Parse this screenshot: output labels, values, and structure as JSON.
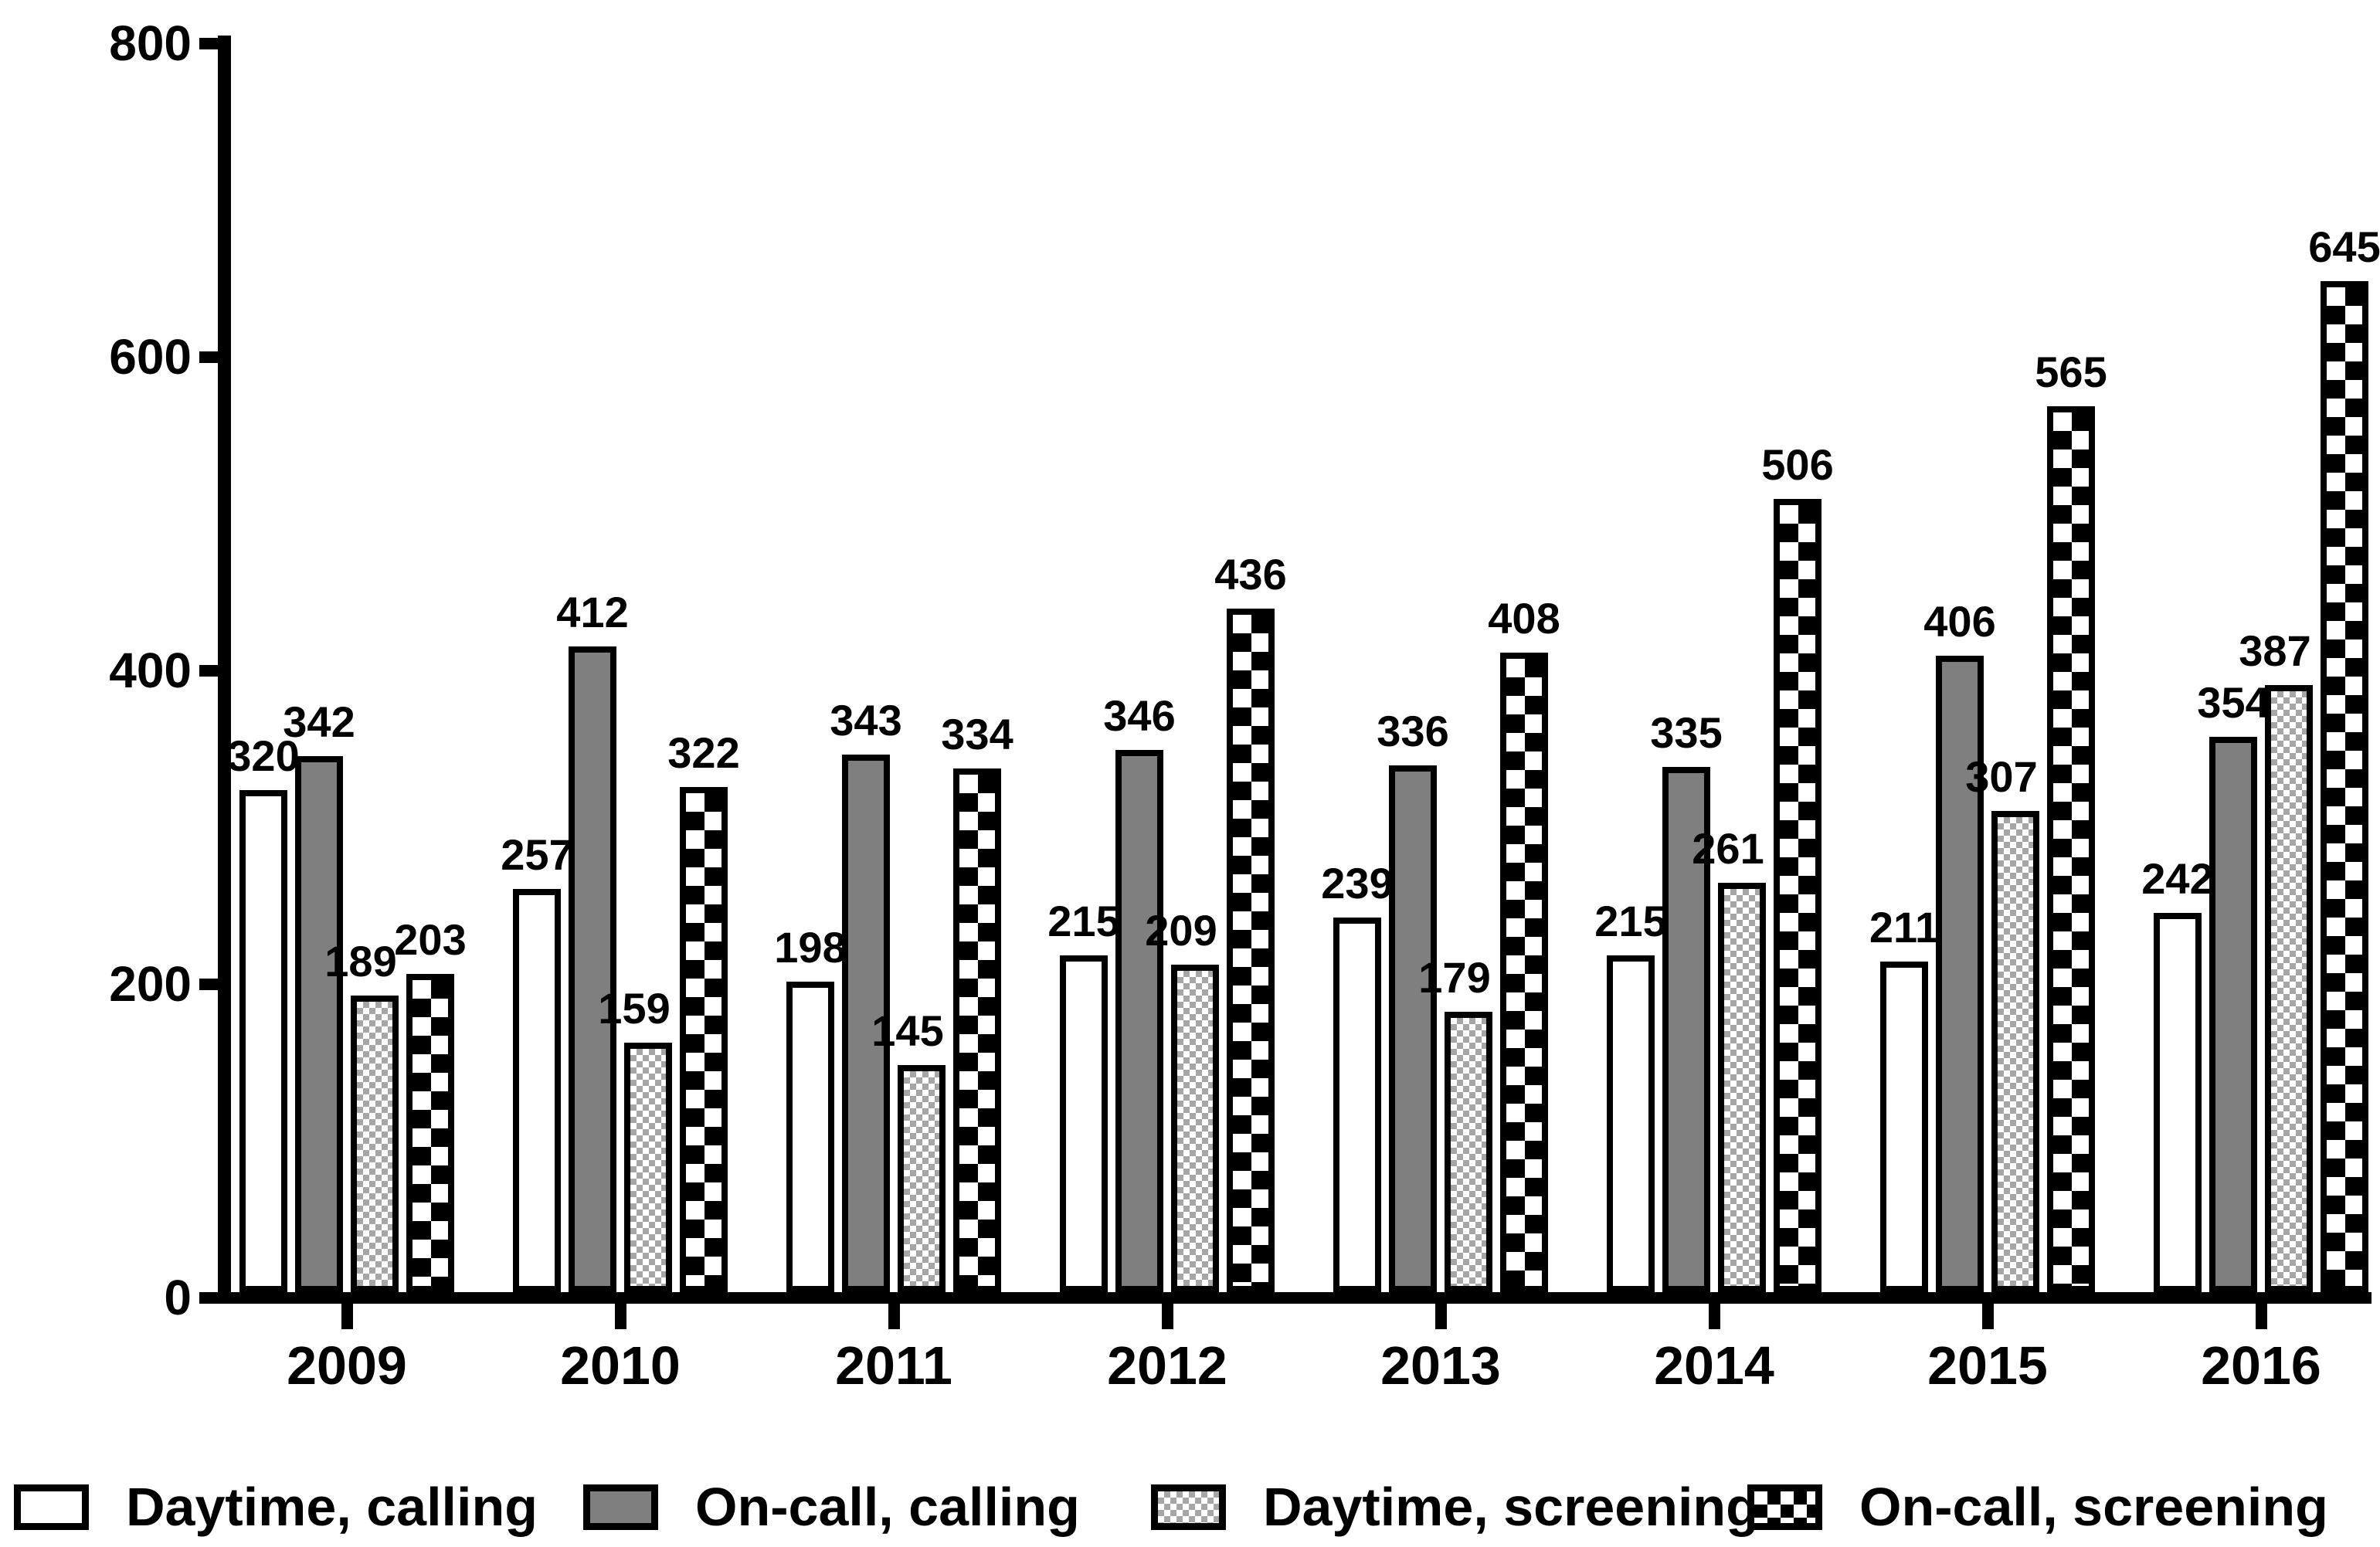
{
  "chart_data": {
    "type": "bar",
    "title": "",
    "xlabel": "",
    "ylabel": "",
    "categories": [
      "2009",
      "2010",
      "2011",
      "2012",
      "2013",
      "2014",
      "2015",
      "2016"
    ],
    "series": [
      {
        "name": "Daytime, calling",
        "pattern": "white",
        "values": [
          320,
          257,
          198,
          215,
          239,
          215,
          211,
          242
        ]
      },
      {
        "name": "On-call, calling",
        "pattern": "solid-gray",
        "values": [
          342,
          412,
          343,
          346,
          336,
          335,
          406,
          354
        ]
      },
      {
        "name": "Daytime, screening",
        "pattern": "fine-checker",
        "values": [
          189,
          159,
          145,
          209,
          179,
          261,
          307,
          387
        ]
      },
      {
        "name": "On-call, screening",
        "pattern": "coarse-checker",
        "values": [
          203,
          322,
          334,
          436,
          408,
          506,
          565,
          645
        ]
      }
    ],
    "ylim": [
      0,
      800
    ],
    "y_ticks": [
      0,
      200,
      400,
      600,
      800
    ],
    "grid": false,
    "bar_value_labels": true,
    "legend_position": "bottom"
  },
  "colors": {
    "background": "#ffffff",
    "bar_outline": "#000000",
    "solid_gray_fill": "#7f7f7f",
    "fine_checker_gray": "#a6a6a6",
    "coarse_checker_black": "#000000",
    "text": "#000000"
  }
}
